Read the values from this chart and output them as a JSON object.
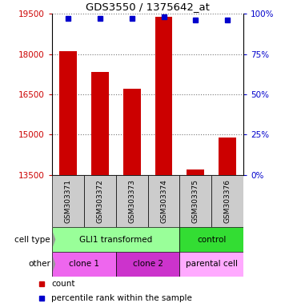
{
  "title": "GDS3550 / 1375642_at",
  "samples": [
    "GSM303371",
    "GSM303372",
    "GSM303373",
    "GSM303374",
    "GSM303375",
    "GSM303376"
  ],
  "counts": [
    18100,
    17350,
    16700,
    19400,
    13700,
    14900
  ],
  "percentile_ranks": [
    97,
    97,
    97,
    98,
    96,
    96
  ],
  "ylim": [
    13500,
    19500
  ],
  "yticks": [
    13500,
    15000,
    16500,
    18000,
    19500
  ],
  "percentile_ylim": [
    0,
    100
  ],
  "percentile_yticks": [
    0,
    25,
    50,
    75,
    100
  ],
  "bar_color": "#cc0000",
  "dot_color": "#0000cc",
  "cell_type_groups": [
    {
      "label": "GLI1 transformed",
      "start": 0,
      "end": 4,
      "color": "#99ff99"
    },
    {
      "label": "control",
      "start": 4,
      "end": 6,
      "color": "#33dd33"
    }
  ],
  "other_groups": [
    {
      "label": "clone 1",
      "start": 0,
      "end": 2,
      "color": "#ee66ee"
    },
    {
      "label": "clone 2",
      "start": 2,
      "end": 4,
      "color": "#cc33cc"
    },
    {
      "label": "parental cell",
      "start": 4,
      "end": 6,
      "color": "#ffaaff"
    }
  ],
  "cell_type_label": "cell type",
  "other_label": "other",
  "legend_count_label": "count",
  "legend_percentile_label": "percentile rank within the sample",
  "tick_color_left": "#cc0000",
  "tick_color_right": "#0000cc",
  "background_color": "#ffffff",
  "grid_color": "#777777",
  "sample_box_color": "#cccccc"
}
